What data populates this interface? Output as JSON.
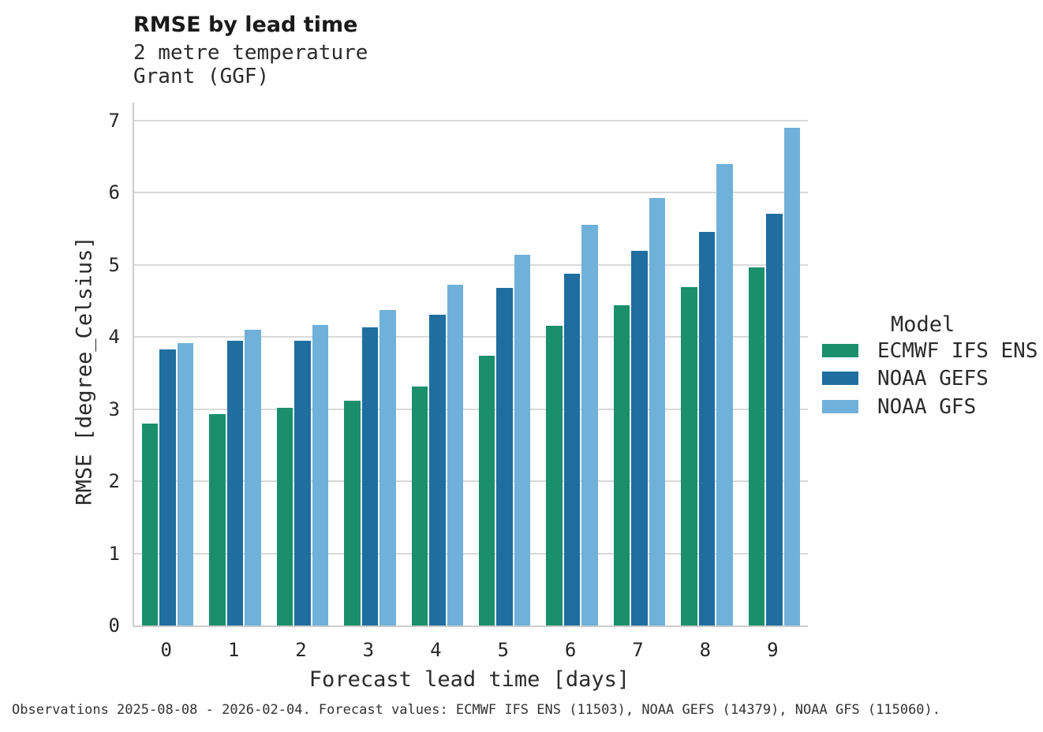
{
  "header": {
    "title": "RMSE by lead time",
    "subtitle_line1": "2 metre temperature",
    "subtitle_line2": "Grant (GGF)"
  },
  "chart_data": {
    "type": "bar",
    "title": "RMSE by lead time",
    "subtitle": [
      "2 metre temperature",
      "Grant (GGF)"
    ],
    "xlabel": "Forecast lead time [days]",
    "ylabel": "RMSE [degree_Celsius]",
    "categories": [
      "0",
      "1",
      "2",
      "3",
      "4",
      "5",
      "6",
      "7",
      "8",
      "9"
    ],
    "series": [
      {
        "name": "ECMWF IFS ENS",
        "color": "#1a8f6c",
        "values": [
          2.8,
          2.93,
          3.02,
          3.12,
          3.31,
          3.74,
          4.16,
          4.44,
          4.69,
          4.96
        ]
      },
      {
        "name": "NOAA GEFS",
        "color": "#1f6e9f",
        "values": [
          3.83,
          3.95,
          3.95,
          4.13,
          4.31,
          4.68,
          4.88,
          5.19,
          5.46,
          5.71
        ]
      },
      {
        "name": "NOAA GFS",
        "color": "#6fb1d9",
        "values": [
          3.91,
          4.1,
          4.17,
          4.37,
          4.72,
          5.14,
          5.55,
          5.93,
          6.4,
          6.9
        ]
      }
    ],
    "ylim": [
      0,
      7.25
    ],
    "yticks": [
      0,
      1,
      2,
      3,
      4,
      5,
      6,
      7
    ],
    "grid": true,
    "legend_title": "Model",
    "legend_position": "right"
  },
  "legend": {
    "title": "Model",
    "items": [
      {
        "label": "ECMWF IFS ENS",
        "color": "#1a8f6c"
      },
      {
        "label": "NOAA GEFS",
        "color": "#1f6e9f"
      },
      {
        "label": "NOAA GFS",
        "color": "#6fb1d9"
      }
    ]
  },
  "footer": {
    "caption": "Observations 2025-08-08 - 2026-02-04. Forecast values: ECMWF IFS ENS (11503), NOAA GEFS (14379), NOAA GFS (115060)."
  },
  "colors": {
    "grid": "#d9d9d9",
    "spine": "#cccccc",
    "text": "#262626",
    "background": "#ffffff"
  }
}
